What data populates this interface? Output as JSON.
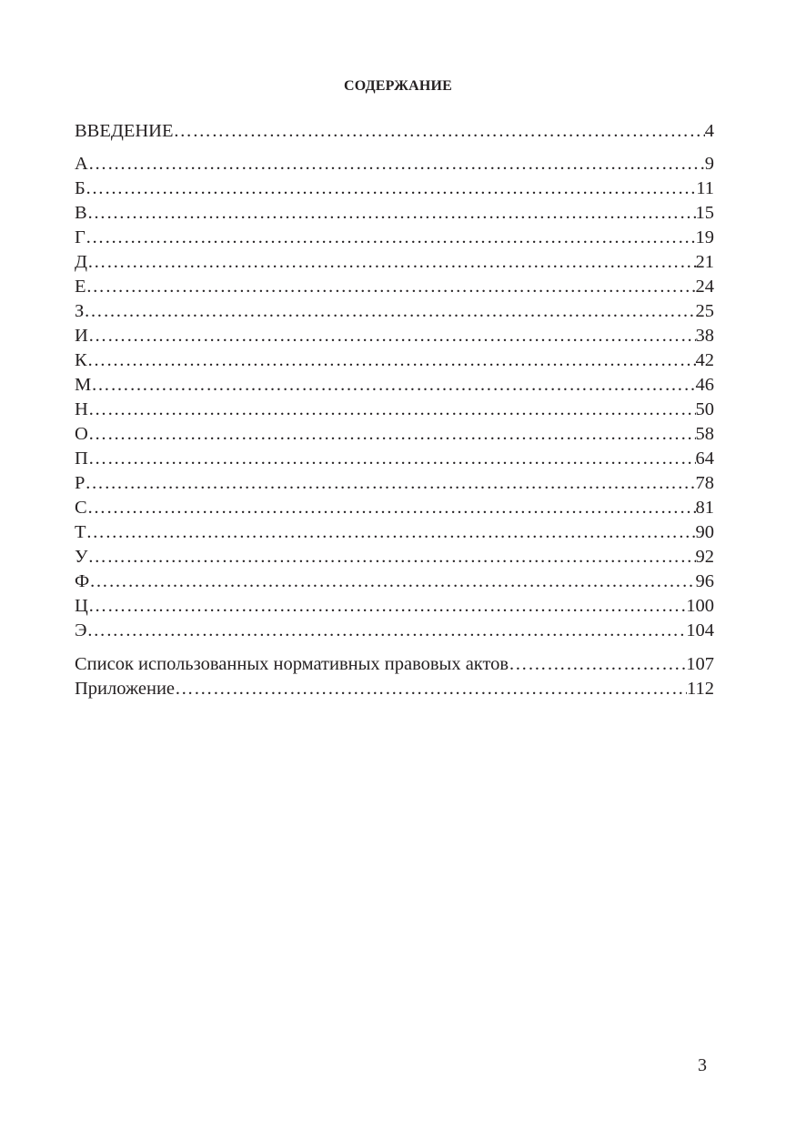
{
  "title": "СОДЕРЖАНИЕ",
  "intro": {
    "label": "ВВЕДЕНИЕ",
    "page": "4"
  },
  "letters": [
    {
      "label": "А",
      "page": "9"
    },
    {
      "label": "Б",
      "page": "11"
    },
    {
      "label": "В",
      "page": "15"
    },
    {
      "label": "Г",
      "page": "19"
    },
    {
      "label": "Д",
      "page": "21"
    },
    {
      "label": "Е",
      "page": "24"
    },
    {
      "label": "З",
      "page": "25"
    },
    {
      "label": "И",
      "page": "38"
    },
    {
      "label": "К",
      "page": "42"
    },
    {
      "label": "М",
      "page": "46"
    },
    {
      "label": "Н",
      "page": "50"
    },
    {
      "label": "О",
      "page": "58"
    },
    {
      "label": "П",
      "page": "64"
    },
    {
      "label": "Р",
      "page": "78"
    },
    {
      "label": "С",
      "page": "81"
    },
    {
      "label": "Т",
      "page": "90"
    },
    {
      "label": "У",
      "page": "92"
    },
    {
      "label": "Ф",
      "page": "96"
    },
    {
      "label": "Ц",
      "page": "100"
    },
    {
      "label": "Э",
      "page": "104"
    }
  ],
  "tail": [
    {
      "label": "Список использованных нормативных правовых актов",
      "page": "107"
    },
    {
      "label": "Приложение",
      "page": "112"
    }
  ],
  "page_number": "3"
}
